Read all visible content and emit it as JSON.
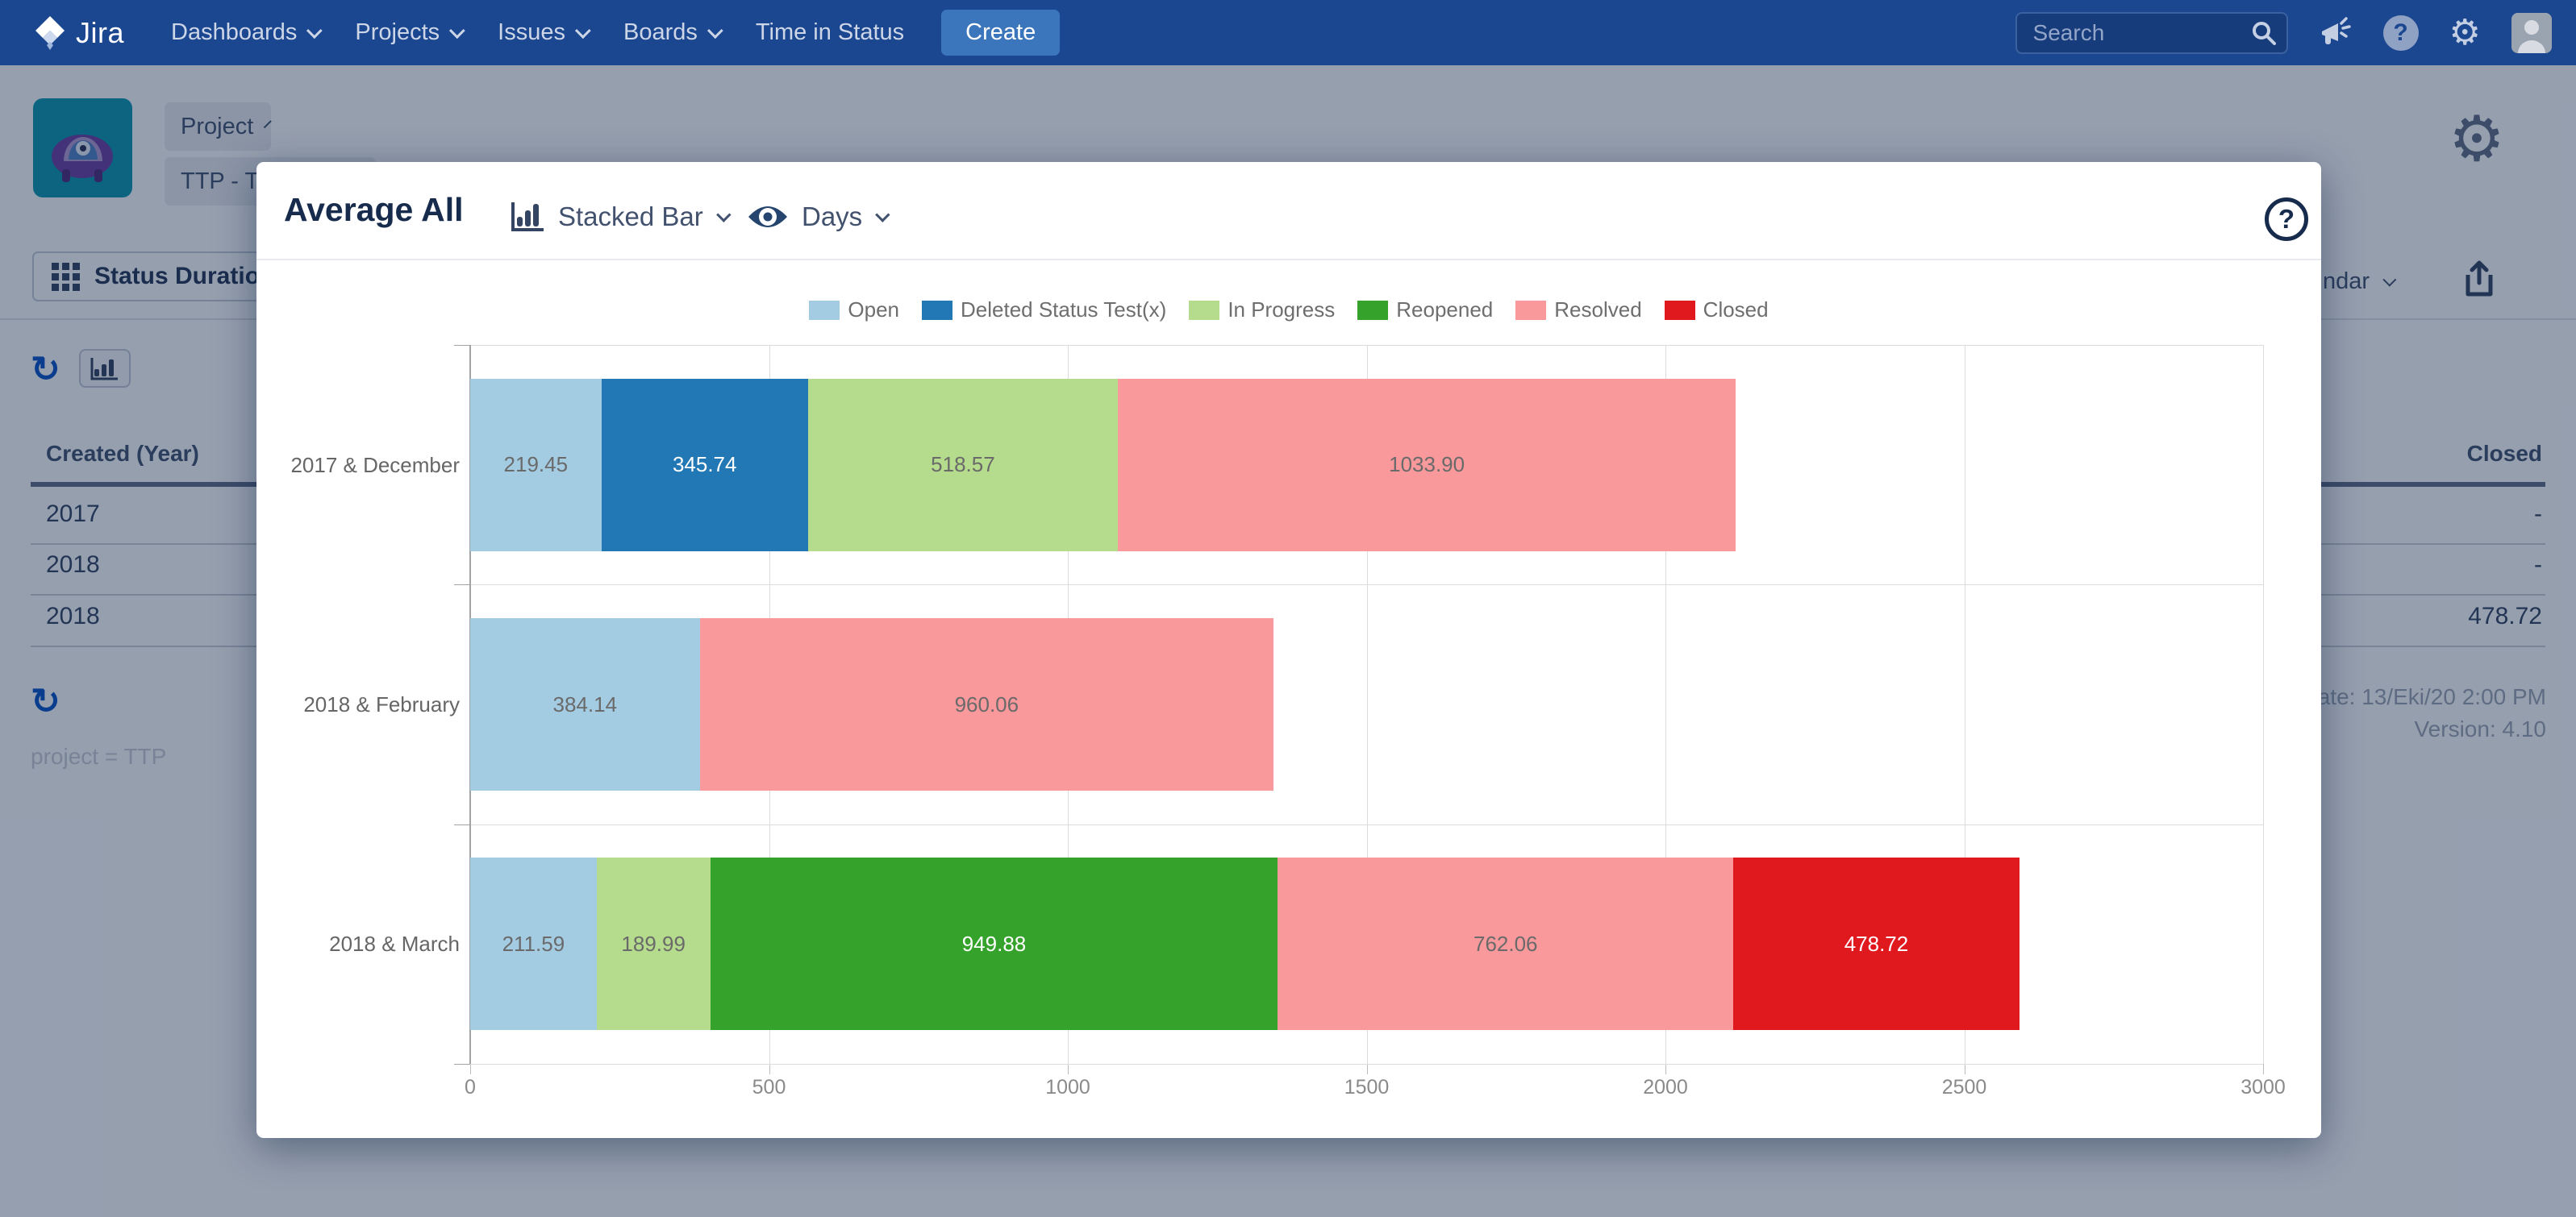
{
  "navbar": {
    "brand": "Jira",
    "items": [
      {
        "label": "Dashboards",
        "caret": true
      },
      {
        "label": "Projects",
        "caret": true
      },
      {
        "label": "Issues",
        "caret": true
      },
      {
        "label": "Boards",
        "caret": true
      },
      {
        "label": "Time in Status",
        "caret": false
      }
    ],
    "create_label": "Create",
    "search_placeholder": "Search",
    "icons": [
      "megaphone-icon",
      "help-icon",
      "gear-icon",
      "user-avatar"
    ]
  },
  "background": {
    "project_button_label": "Project",
    "project_code": "TTP - TIS",
    "tab_label": "Status Duration",
    "calendar_fragment": "ndar",
    "gear_glyph": "⚙",
    "refresh_glyph": "↻",
    "table": {
      "left_header": "Created (Year)",
      "right_header": "Closed",
      "rows": [
        {
          "year": "2017",
          "closed": "-"
        },
        {
          "year": "2018",
          "closed": "-"
        },
        {
          "year": "2018",
          "closed": "478.72"
        }
      ]
    },
    "filter_text": "project = TTP",
    "report_date_fragment": "rt Date: 13/Eki/20 2:00 PM",
    "version_text": "Version: 4.10"
  },
  "modal": {
    "title": "Average All",
    "chart_type_label": "Stacked Bar",
    "unit_label": "Days",
    "help_glyph": "?"
  },
  "chart_data": {
    "type": "bar",
    "orientation": "horizontal",
    "stacked": true,
    "xlim": [
      0,
      3000
    ],
    "xticks": [
      0,
      500,
      1000,
      1500,
      2000,
      2500,
      3000
    ],
    "grid": true,
    "legend_position": "top-center",
    "series": [
      {
        "name": "Open",
        "color": "#a3cce3",
        "label_color": "#6a6a6a"
      },
      {
        "name": "Deleted Status Test(x)",
        "color": "#2278b5",
        "label_color": "#ffffff"
      },
      {
        "name": "In Progress",
        "color": "#b5db8c",
        "label_color": "#6a6a6a"
      },
      {
        "name": "Reopened",
        "color": "#35a32b",
        "label_color": "#ffffff"
      },
      {
        "name": "Resolved",
        "color": "#f9999c",
        "label_color": "#6a6a6a"
      },
      {
        "name": "Closed",
        "color": "#e0191f",
        "label_color": "#ffffff"
      }
    ],
    "rows": [
      {
        "category": "2017 & December",
        "segments": [
          {
            "series": "Open",
            "value": 219.45,
            "label": "219.45"
          },
          {
            "series": "Deleted Status Test(x)",
            "value": 345.74,
            "label": "345.74"
          },
          {
            "series": "In Progress",
            "value": 518.57,
            "label": "518.57"
          },
          {
            "series": "Resolved",
            "value": 1033.9,
            "label": "1033.90"
          }
        ]
      },
      {
        "category": "2018 & February",
        "segments": [
          {
            "series": "Open",
            "value": 384.14,
            "label": "384.14"
          },
          {
            "series": "Resolved",
            "value": 960.06,
            "label": "960.06"
          }
        ]
      },
      {
        "category": "2018 & March",
        "segments": [
          {
            "series": "Open",
            "value": 211.59,
            "label": "211.59"
          },
          {
            "series": "In Progress",
            "value": 189.99,
            "label": "189.99"
          },
          {
            "series": "Reopened",
            "value": 949.88,
            "label": "949.88"
          },
          {
            "series": "Resolved",
            "value": 762.06,
            "label": "762.06"
          },
          {
            "series": "Closed",
            "value": 478.72,
            "label": "478.72"
          }
        ]
      }
    ]
  }
}
